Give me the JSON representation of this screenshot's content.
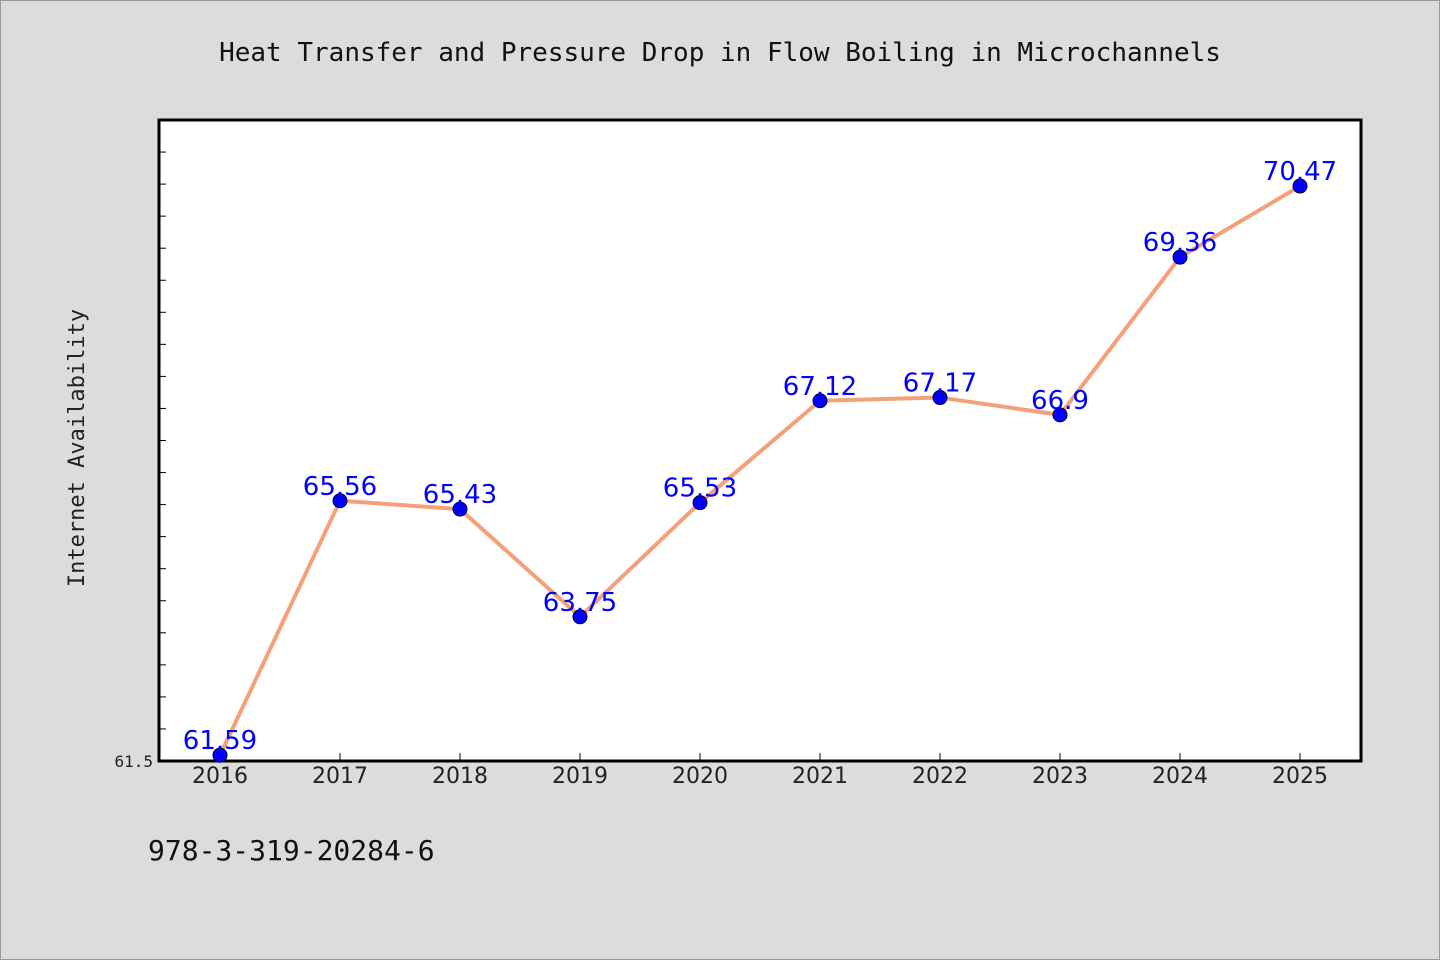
{
  "chart_data": {
    "type": "line",
    "title": "Heat Transfer and Pressure Drop in Flow Boiling in Microchannels",
    "xlabel": "",
    "ylabel": "Internet Availability",
    "categories": [
      "2016",
      "2017",
      "2018",
      "2019",
      "2020",
      "2021",
      "2022",
      "2023",
      "2024",
      "2025"
    ],
    "series": [
      {
        "values": [
          61.59,
          65.56,
          65.43,
          63.75,
          65.53,
          67.12,
          67.17,
          66.9,
          69.36,
          70.47
        ],
        "labels": [
          "61.59",
          "65.56",
          "65.43",
          "63.75",
          "65.53",
          "67.12",
          "67.17",
          "66.9",
          "69.36",
          "70.47"
        ],
        "line_color": "#f4a07a",
        "marker_color": "#0000ff"
      }
    ],
    "ylim": [
      61.5,
      71.5
    ],
    "y_tick_labels": [
      {
        "value": 61.5,
        "label": "61.5"
      }
    ],
    "grid": false,
    "legend": "none",
    "background_color": "#dcdcdc",
    "plot_background_color": "#ffffff"
  },
  "footer": {
    "isbn": "978-3-319-20284-6"
  }
}
